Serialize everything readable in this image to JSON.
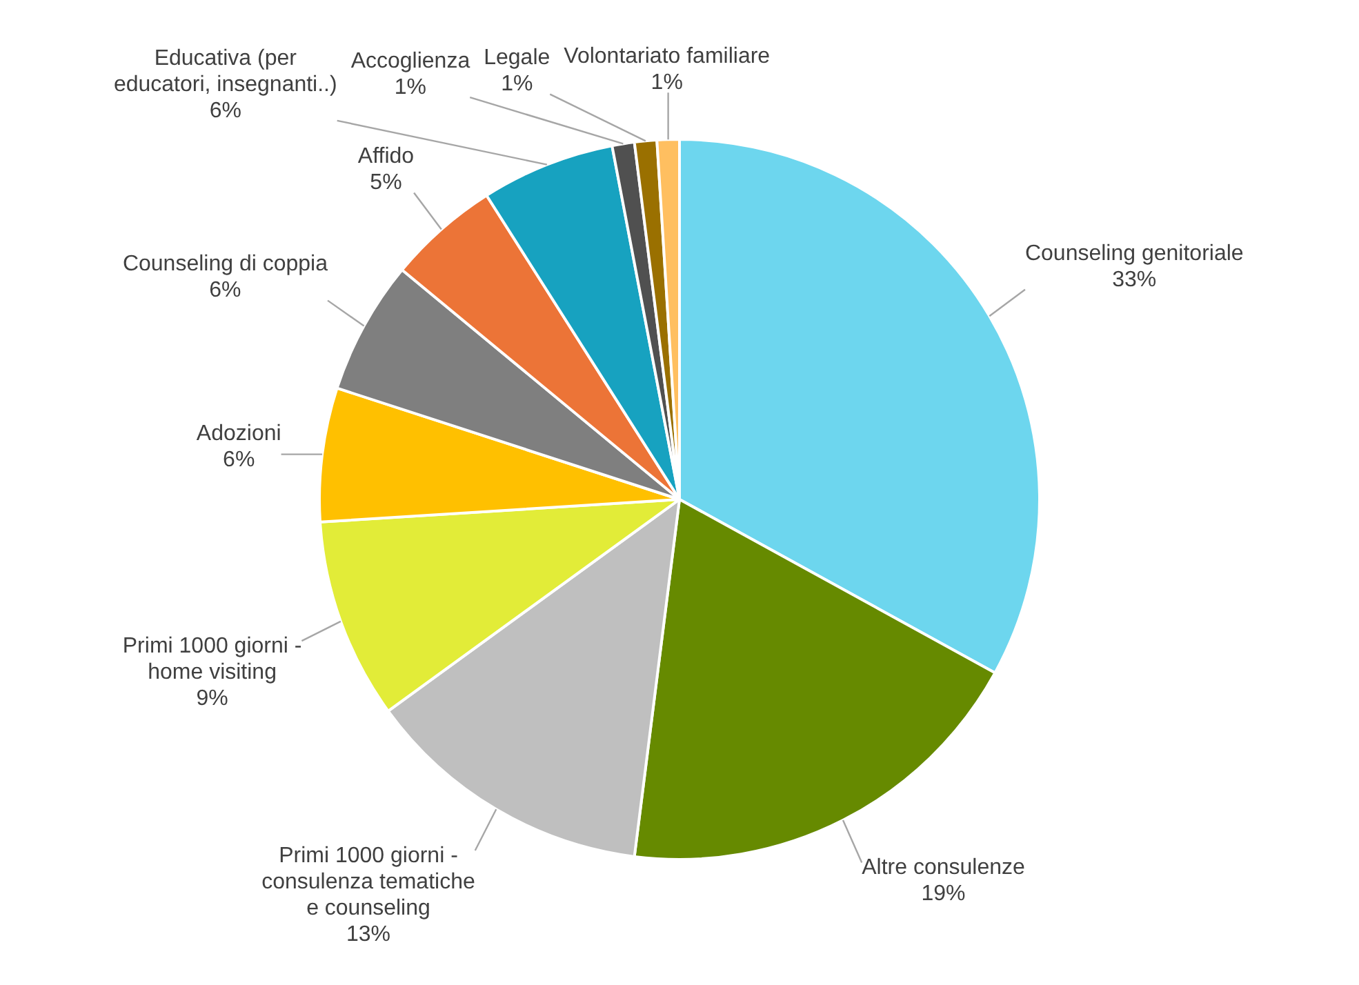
{
  "chart_data": {
    "type": "pie",
    "categories": [
      "Counseling genitoriale",
      "Altre consulenze",
      "Primi 1000 giorni - consulenza tematiche e counseling",
      "Primi 1000 giorni - home visiting",
      "Adozioni",
      "Counseling di coppia",
      "Affido",
      "Educativa (per educatori, insegnanti..)",
      "Accoglienza",
      "Legale",
      "Volontariato familiare"
    ],
    "values": [
      33,
      19,
      13,
      9,
      6,
      6,
      5,
      6,
      1,
      1,
      1
    ],
    "colors": [
      "#6dd6ee",
      "#668a00",
      "#bfbfbf",
      "#e2ec38",
      "#ffc000",
      "#7f7f7f",
      "#ec7437",
      "#17a2c0",
      "#505050",
      "#9a7000",
      "#ffbf60"
    ],
    "value_labels": [
      "33%",
      "19%",
      "13%",
      "9%",
      "6%",
      "6%",
      "5%",
      "6%",
      "1%",
      "1%",
      "1%"
    ],
    "legend": false
  }
}
